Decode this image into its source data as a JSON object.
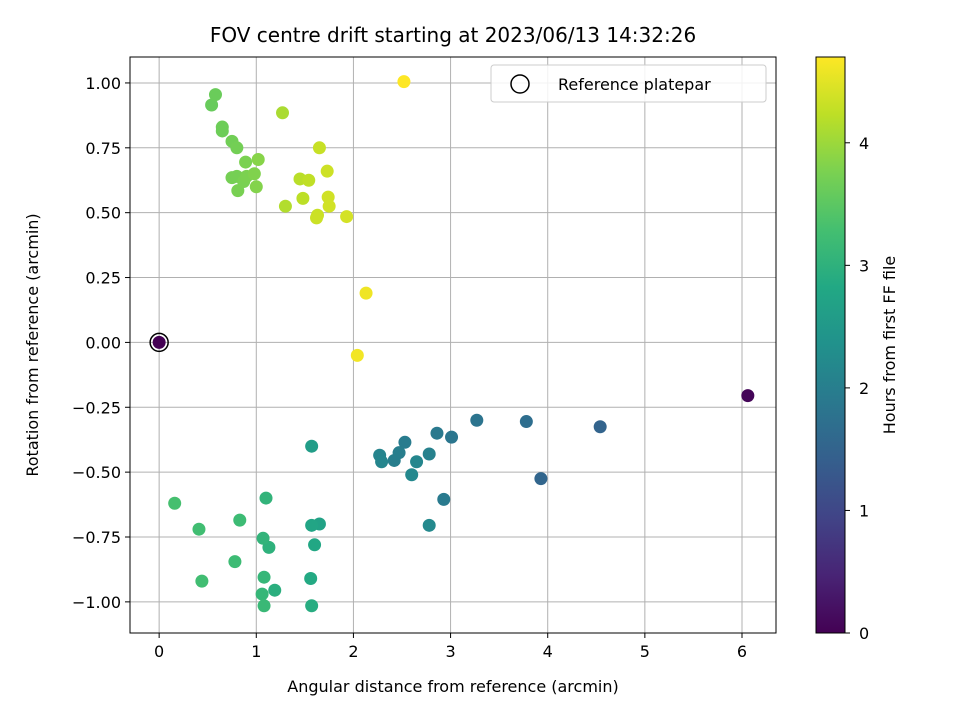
{
  "chart_data": {
    "type": "scatter",
    "title": "FOV centre drift starting at 2023/06/13 14:32:26",
    "xlabel": "Angular distance from reference (arcmin)",
    "ylabel": "Rotation from reference (arcmin)",
    "xlim": [
      -0.3,
      6.35
    ],
    "ylim": [
      -1.12,
      1.1
    ],
    "xticks": [
      "0",
      "1",
      "2",
      "3",
      "4",
      "5",
      "6"
    ],
    "yticks": [
      "1.00",
      "0.75",
      "0.50",
      "0.25",
      "0.00",
      "−0.25",
      "−0.50",
      "−0.75",
      "−1.00"
    ],
    "grid": true,
    "legend": {
      "placement": "top-right",
      "label": "Reference platepar"
    },
    "reference_point": {
      "x": 0,
      "y": 0
    },
    "colorbar": {
      "label": "Hours from first FF file",
      "colormap": "viridis",
      "range": [
        0,
        4.7
      ],
      "ticks": [
        "0",
        "1",
        "2",
        "3",
        "4"
      ]
    },
    "series": [
      {
        "points": [
          {
            "x": 0.0,
            "y": 0.0,
            "t": 0.0
          },
          {
            "x": 6.06,
            "y": -0.205,
            "t": 0.05
          },
          {
            "x": 4.54,
            "y": -0.325,
            "t": 1.5
          },
          {
            "x": 3.93,
            "y": -0.525,
            "t": 1.55
          },
          {
            "x": 3.78,
            "y": -0.305,
            "t": 1.7
          },
          {
            "x": 3.27,
            "y": -0.3,
            "t": 1.8
          },
          {
            "x": 3.01,
            "y": -0.365,
            "t": 1.85
          },
          {
            "x": 2.86,
            "y": -0.35,
            "t": 1.9
          },
          {
            "x": 2.93,
            "y": -0.605,
            "t": 1.92
          },
          {
            "x": 2.53,
            "y": -0.385,
            "t": 1.95
          },
          {
            "x": 2.47,
            "y": -0.425,
            "t": 2.0
          },
          {
            "x": 2.42,
            "y": -0.455,
            "t": 2.0
          },
          {
            "x": 2.78,
            "y": -0.43,
            "t": 2.05
          },
          {
            "x": 2.27,
            "y": -0.435,
            "t": 2.1
          },
          {
            "x": 2.29,
            "y": -0.46,
            "t": 2.12
          },
          {
            "x": 2.65,
            "y": -0.46,
            "t": 2.15
          },
          {
            "x": 2.6,
            "y": -0.51,
            "t": 2.18
          },
          {
            "x": 2.78,
            "y": -0.705,
            "t": 2.2
          },
          {
            "x": 1.57,
            "y": -0.4,
            "t": 2.6
          },
          {
            "x": 1.65,
            "y": -0.7,
            "t": 2.7
          },
          {
            "x": 1.57,
            "y": -0.705,
            "t": 2.75
          },
          {
            "x": 1.6,
            "y": -0.78,
            "t": 2.8
          },
          {
            "x": 1.56,
            "y": -0.91,
            "t": 2.85
          },
          {
            "x": 1.57,
            "y": -1.015,
            "t": 2.9
          },
          {
            "x": 1.19,
            "y": -0.955,
            "t": 2.95
          },
          {
            "x": 1.13,
            "y": -0.79,
            "t": 3.0
          },
          {
            "x": 1.1,
            "y": -0.6,
            "t": 3.05
          },
          {
            "x": 1.07,
            "y": -0.755,
            "t": 3.05
          },
          {
            "x": 1.08,
            "y": -0.905,
            "t": 3.1
          },
          {
            "x": 1.06,
            "y": -0.97,
            "t": 3.1
          },
          {
            "x": 1.08,
            "y": -1.015,
            "t": 3.15
          },
          {
            "x": 0.83,
            "y": -0.685,
            "t": 3.2
          },
          {
            "x": 0.78,
            "y": -0.845,
            "t": 3.2
          },
          {
            "x": 0.41,
            "y": -0.72,
            "t": 3.25
          },
          {
            "x": 0.44,
            "y": -0.92,
            "t": 3.25
          },
          {
            "x": 0.16,
            "y": -0.62,
            "t": 3.3
          },
          {
            "x": 0.54,
            "y": 0.915,
            "t": 3.6
          },
          {
            "x": 0.58,
            "y": 0.955,
            "t": 3.62
          },
          {
            "x": 0.65,
            "y": 0.83,
            "t": 3.65
          },
          {
            "x": 0.65,
            "y": 0.815,
            "t": 3.65
          },
          {
            "x": 0.75,
            "y": 0.775,
            "t": 3.68
          },
          {
            "x": 0.8,
            "y": 0.75,
            "t": 3.7
          },
          {
            "x": 0.75,
            "y": 0.635,
            "t": 3.72
          },
          {
            "x": 0.8,
            "y": 0.64,
            "t": 3.72
          },
          {
            "x": 0.81,
            "y": 0.585,
            "t": 3.74
          },
          {
            "x": 0.87,
            "y": 0.62,
            "t": 3.75
          },
          {
            "x": 0.89,
            "y": 0.695,
            "t": 3.76
          },
          {
            "x": 0.9,
            "y": 0.64,
            "t": 3.77
          },
          {
            "x": 0.98,
            "y": 0.65,
            "t": 3.8
          },
          {
            "x": 1.0,
            "y": 0.6,
            "t": 3.82
          },
          {
            "x": 1.02,
            "y": 0.705,
            "t": 3.85
          },
          {
            "x": 1.27,
            "y": 0.885,
            "t": 4.1
          },
          {
            "x": 1.3,
            "y": 0.525,
            "t": 4.15
          },
          {
            "x": 1.45,
            "y": 0.63,
            "t": 4.2
          },
          {
            "x": 1.48,
            "y": 0.555,
            "t": 4.22
          },
          {
            "x": 1.54,
            "y": 0.625,
            "t": 4.25
          },
          {
            "x": 1.65,
            "y": 0.75,
            "t": 4.3
          },
          {
            "x": 1.63,
            "y": 0.49,
            "t": 4.32
          },
          {
            "x": 1.62,
            "y": 0.48,
            "t": 4.33
          },
          {
            "x": 1.73,
            "y": 0.66,
            "t": 4.35
          },
          {
            "x": 1.74,
            "y": 0.56,
            "t": 4.37
          },
          {
            "x": 1.75,
            "y": 0.525,
            "t": 4.38
          },
          {
            "x": 1.93,
            "y": 0.485,
            "t": 4.4
          },
          {
            "x": 2.13,
            "y": 0.19,
            "t": 4.6
          },
          {
            "x": 2.04,
            "y": -0.05,
            "t": 4.62
          },
          {
            "x": 2.52,
            "y": 1.005,
            "t": 4.7
          }
        ]
      }
    ]
  }
}
